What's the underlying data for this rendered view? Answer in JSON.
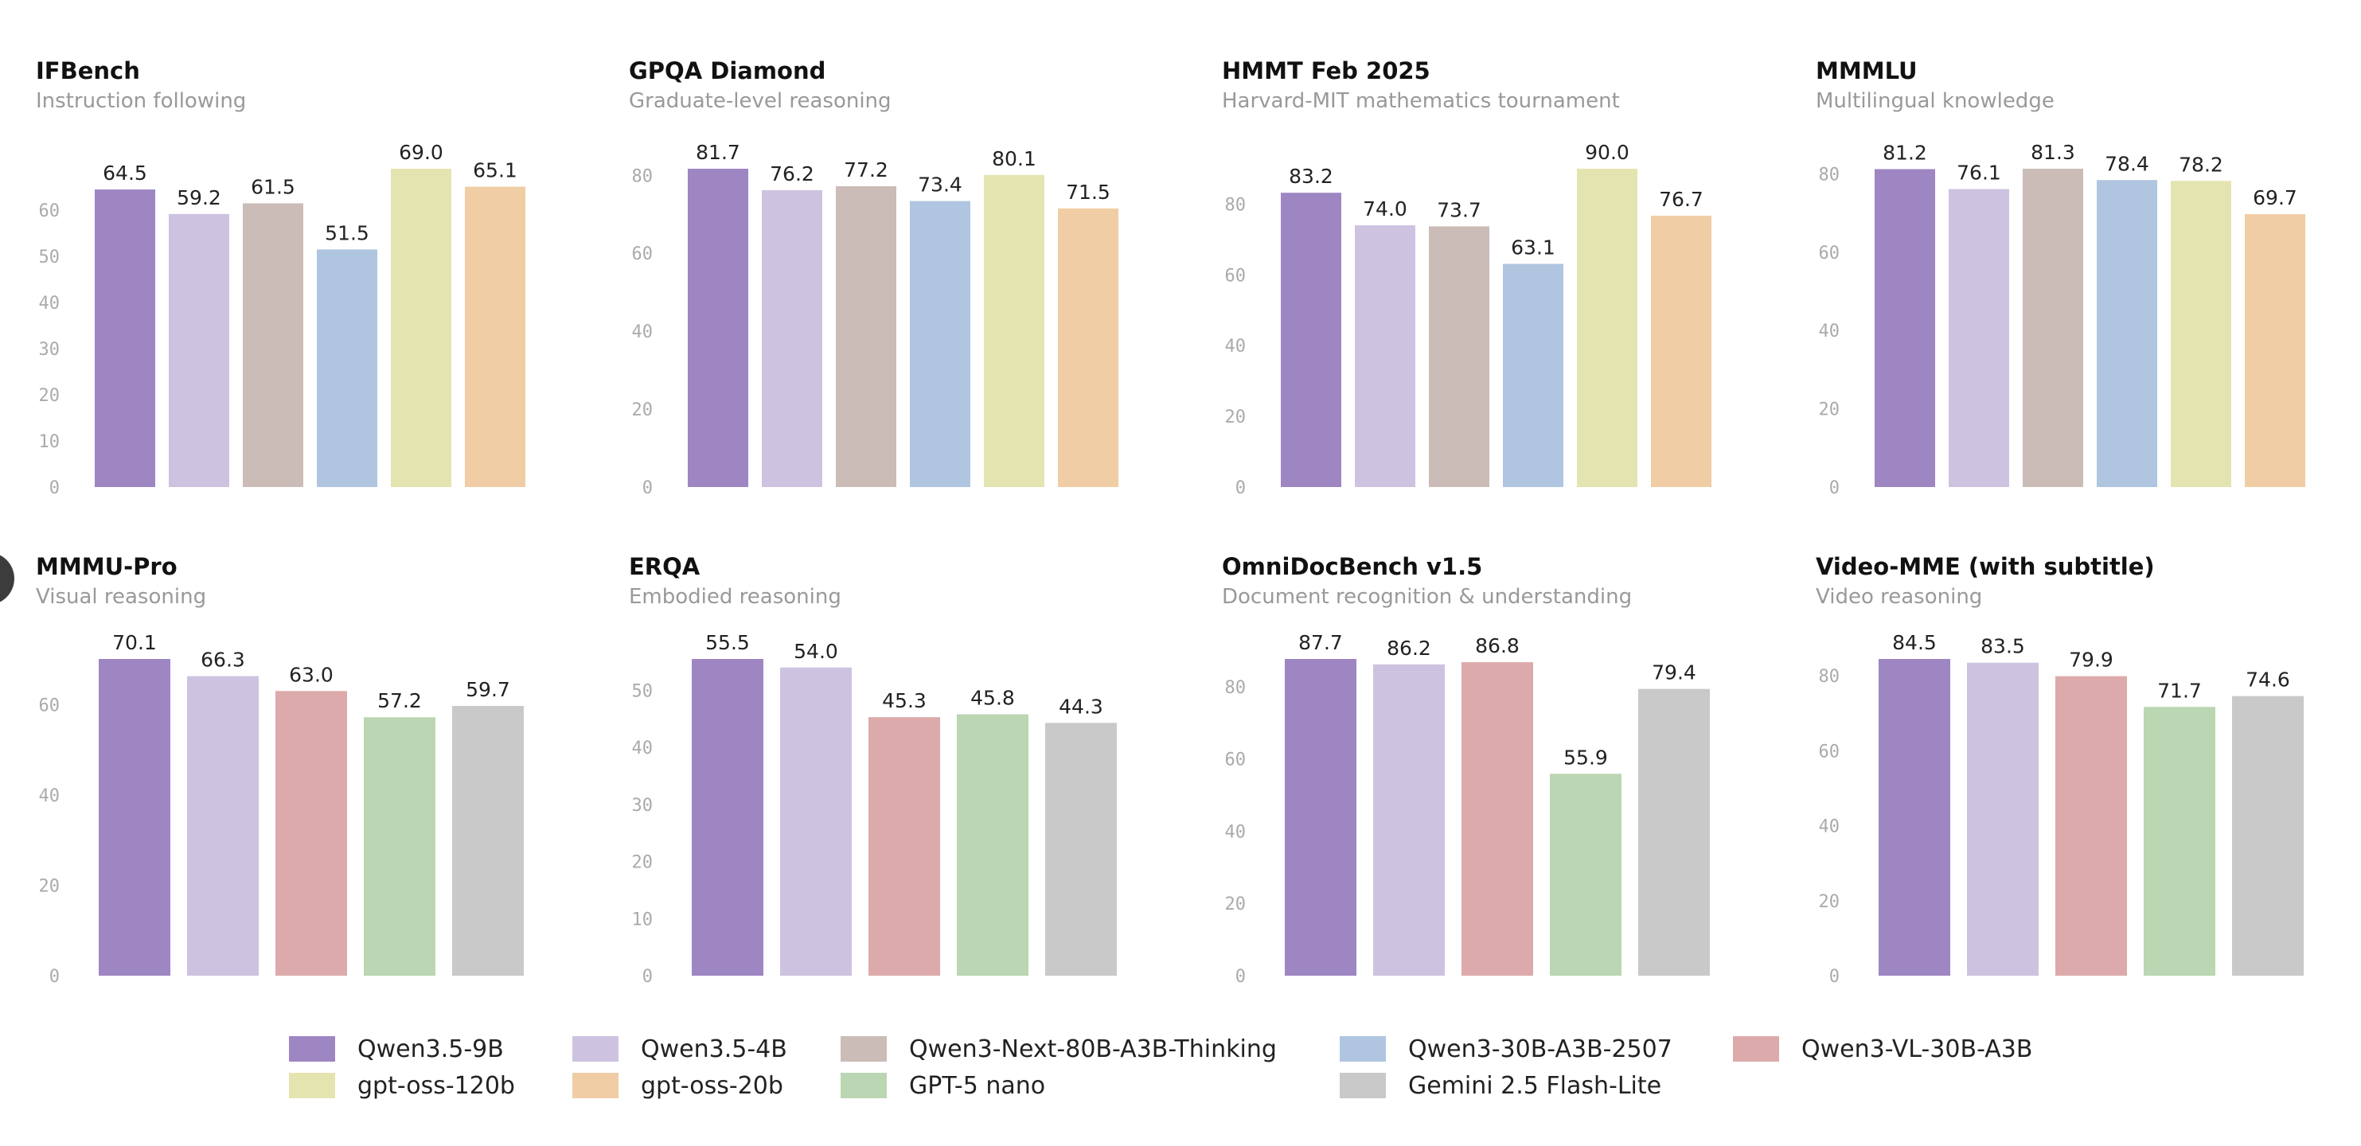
{
  "models": [
    {
      "key": "qwen35_9b",
      "name": "Qwen3.5-9B",
      "color": "#9e86c3"
    },
    {
      "key": "qwen35_4b",
      "name": "Qwen3.5-4B",
      "color": "#cdc3e0"
    },
    {
      "key": "qwen3_next",
      "name": "Qwen3-Next-80B-A3B-Thinking",
      "color": "#cbbcb8"
    },
    {
      "key": "qwen3_30b",
      "name": "Qwen3-30B-A3B-2507",
      "color": "#b0c5df"
    },
    {
      "key": "qwen3_vl",
      "name": "Qwen3-VL-30B-A3B",
      "color": "#dcaaaa"
    },
    {
      "key": "gpt_oss_120b",
      "name": "gpt-oss-120b",
      "color": "#e4e4b0"
    },
    {
      "key": "gpt_oss_20b",
      "name": "gpt-oss-20b",
      "color": "#f0cda4"
    },
    {
      "key": "gpt5_nano",
      "name": "GPT-5 nano",
      "color": "#bad6b2"
    },
    {
      "key": "gemini_flash_lite",
      "name": "Gemini 2.5 Flash-Lite",
      "color": "#c9c9c9"
    }
  ],
  "legend": {
    "rows": [
      [
        "Qwen3.5-9B",
        "Qwen3.5-4B",
        "Qwen3-Next-80B-A3B-Thinking",
        "Qwen3-30B-A3B-2507",
        "Qwen3-VL-30B-A3B"
      ],
      [
        "gpt-oss-120b",
        "gpt-oss-20b",
        "GPT-5 nano",
        "Gemini 2.5 Flash-Lite"
      ]
    ],
    "position": "bottom-center"
  },
  "chart_data": [
    {
      "type": "bar",
      "title": "IFBench",
      "subtitle": "Instruction following",
      "categories": [
        "Qwen3.5-9B",
        "Qwen3.5-4B",
        "Qwen3-Next-80B-A3B-Thinking",
        "Qwen3-30B-A3B-2507",
        "gpt-oss-120b",
        "gpt-oss-20b"
      ],
      "values": [
        64.5,
        59.2,
        61.5,
        51.5,
        69.0,
        65.1
      ],
      "labels": [
        "64.5",
        "59.2",
        "61.5",
        "51.5",
        "69.0",
        "65.1"
      ],
      "yticks": [
        0,
        10,
        20,
        30,
        40,
        50,
        60
      ],
      "ytick_labels": [
        "0",
        "10",
        "20",
        "30",
        "40",
        "50",
        "60"
      ],
      "ylim": [
        0,
        69.0
      ],
      "grid": false,
      "xlabel": "",
      "ylabel": ""
    },
    {
      "type": "bar",
      "title": "GPQA Diamond",
      "subtitle": "Graduate-level reasoning",
      "categories": [
        "Qwen3.5-9B",
        "Qwen3.5-4B",
        "Qwen3-Next-80B-A3B-Thinking",
        "Qwen3-30B-A3B-2507",
        "gpt-oss-120b",
        "gpt-oss-20b"
      ],
      "values": [
        81.7,
        76.2,
        77.2,
        73.4,
        80.1,
        71.5
      ],
      "labels": [
        "81.7",
        "76.2",
        "77.2",
        "73.4",
        "80.1",
        "71.5"
      ],
      "yticks": [
        0,
        20,
        40,
        60,
        80
      ],
      "ytick_labels": [
        "0",
        "20",
        "40",
        "60",
        "80"
      ],
      "ylim": [
        0,
        81.7
      ],
      "grid": false,
      "xlabel": "",
      "ylabel": ""
    },
    {
      "type": "bar",
      "title": "HMMT Feb 2025",
      "subtitle": "Harvard-MIT mathematics tournament",
      "categories": [
        "Qwen3.5-9B",
        "Qwen3.5-4B",
        "Qwen3-Next-80B-A3B-Thinking",
        "Qwen3-30B-A3B-2507",
        "gpt-oss-120b",
        "gpt-oss-20b"
      ],
      "values": [
        83.2,
        74.0,
        73.7,
        63.1,
        90.0,
        76.7
      ],
      "labels": [
        "83.2",
        "74.0",
        "73.7",
        "63.1",
        "90.0",
        "76.7"
      ],
      "yticks": [
        0,
        20,
        40,
        60,
        80
      ],
      "ytick_labels": [
        "0",
        "20",
        "40",
        "60",
        "80"
      ],
      "ylim": [
        0,
        90.0
      ],
      "grid": false,
      "xlabel": "",
      "ylabel": ""
    },
    {
      "type": "bar",
      "title": "MMMLU",
      "subtitle": "Multilingual knowledge",
      "categories": [
        "Qwen3.5-9B",
        "Qwen3.5-4B",
        "Qwen3-Next-80B-A3B-Thinking",
        "Qwen3-30B-A3B-2507",
        "gpt-oss-120b",
        "gpt-oss-20b"
      ],
      "values": [
        81.2,
        76.1,
        81.3,
        78.4,
        78.2,
        69.7
      ],
      "labels": [
        "81.2",
        "76.1",
        "81.3",
        "78.4",
        "78.2",
        "69.7"
      ],
      "yticks": [
        0,
        20,
        40,
        60,
        80
      ],
      "ytick_labels": [
        "0",
        "20",
        "40",
        "60",
        "80"
      ],
      "ylim": [
        0,
        81.3
      ],
      "grid": false,
      "xlabel": "",
      "ylabel": ""
    },
    {
      "type": "bar",
      "title": "MMMU-Pro",
      "subtitle": "Visual reasoning",
      "categories": [
        "Qwen3.5-9B",
        "Qwen3.5-4B",
        "Qwen3-VL-30B-A3B",
        "GPT-5 nano",
        "Gemini 2.5 Flash-Lite"
      ],
      "values": [
        70.1,
        66.3,
        63.0,
        57.2,
        59.7
      ],
      "labels": [
        "70.1",
        "66.3",
        "63.0",
        "57.2",
        "59.7"
      ],
      "yticks": [
        0,
        20,
        40,
        60
      ],
      "ytick_labels": [
        "0",
        "20",
        "40",
        "60"
      ],
      "ylim": [
        0,
        70.1
      ],
      "grid": false,
      "xlabel": "",
      "ylabel": ""
    },
    {
      "type": "bar",
      "title": "ERQA",
      "subtitle": "Embodied reasoning",
      "categories": [
        "Qwen3.5-9B",
        "Qwen3.5-4B",
        "Qwen3-VL-30B-A3B",
        "GPT-5 nano",
        "Gemini 2.5 Flash-Lite"
      ],
      "values": [
        55.5,
        54.0,
        45.3,
        45.8,
        44.3
      ],
      "labels": [
        "55.5",
        "54.0",
        "45.3",
        "45.8",
        "44.3"
      ],
      "yticks": [
        0,
        10,
        20,
        30,
        40,
        50
      ],
      "ytick_labels": [
        "0",
        "10",
        "20",
        "30",
        "40",
        "50"
      ],
      "ylim": [
        0,
        55.5
      ],
      "grid": false,
      "xlabel": "",
      "ylabel": ""
    },
    {
      "type": "bar",
      "title": "OmniDocBench v1.5",
      "subtitle": "Document recognition & understanding",
      "categories": [
        "Qwen3.5-9B",
        "Qwen3.5-4B",
        "Qwen3-VL-30B-A3B",
        "GPT-5 nano",
        "Gemini 2.5 Flash-Lite"
      ],
      "values": [
        87.7,
        86.2,
        86.8,
        55.9,
        79.4
      ],
      "labels": [
        "87.7",
        "86.2",
        "86.8",
        "55.9",
        "79.4"
      ],
      "yticks": [
        0,
        20,
        40,
        60,
        80
      ],
      "ytick_labels": [
        "0",
        "20",
        "40",
        "60",
        "80"
      ],
      "ylim": [
        0,
        87.7
      ],
      "grid": false,
      "xlabel": "",
      "ylabel": ""
    },
    {
      "type": "bar",
      "title": "Video-MME (with subtitle)",
      "subtitle": "Video reasoning",
      "categories": [
        "Qwen3.5-9B",
        "Qwen3.5-4B",
        "Qwen3-VL-30B-A3B",
        "GPT-5 nano",
        "Gemini 2.5 Flash-Lite"
      ],
      "values": [
        84.5,
        83.5,
        79.9,
        71.7,
        74.6
      ],
      "labels": [
        "84.5",
        "83.5",
        "79.9",
        "71.7",
        "74.6"
      ],
      "yticks": [
        0,
        20,
        40,
        60,
        80
      ],
      "ytick_labels": [
        "0",
        "20",
        "40",
        "60",
        "80"
      ],
      "ylim": [
        0,
        84.5
      ],
      "grid": false,
      "xlabel": "",
      "ylabel": ""
    }
  ]
}
